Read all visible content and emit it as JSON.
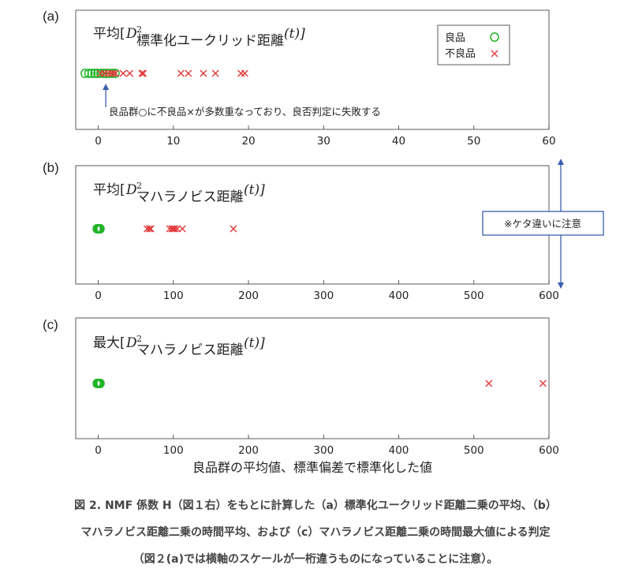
{
  "chart_data": [
    {
      "panel_label": "(a)",
      "type": "scatter",
      "title_prefix": "平均[",
      "title_math": "D",
      "title_sup": "2",
      "title_sub": "標準化ユークリッド距離",
      "title_tail": "(t)]",
      "xlim": [
        -3,
        60
      ],
      "xticks": [
        0,
        10,
        20,
        30,
        40,
        50,
        60
      ],
      "legend_position": "top-right",
      "legend": [
        {
          "label": "良品",
          "marker": "circle",
          "color": "#23b42a"
        },
        {
          "label": "不良品",
          "marker": "x",
          "color": "#e23b3b"
        }
      ],
      "series": [
        {
          "name": "良品",
          "x": [
            -1.8,
            -1.3,
            -0.9,
            -0.5,
            -0.1,
            0.3,
            0.7,
            1.1,
            1.5,
            1.9,
            2.3
          ]
        },
        {
          "name": "不良品",
          "x": [
            0.3,
            0.8,
            1.3,
            1.7,
            2.0,
            2.3,
            3.3,
            4.2,
            5.8,
            6.0,
            11.0,
            12.0,
            14.0,
            15.6,
            19.0,
            19.5
          ]
        }
      ],
      "annotation": {
        "text": "良品群○に不良品×が多数重なっており、良否判定に失敗する",
        "arrow_x": 1.0
      }
    },
    {
      "panel_label": "(b)",
      "type": "scatter",
      "title_prefix": "平均[",
      "title_math": "D",
      "title_sup": "2",
      "title_sub": "マハラノビス距離",
      "title_tail": "(t)]",
      "xlim": [
        -30,
        600
      ],
      "xticks": [
        0,
        100,
        200,
        300,
        400,
        500,
        600
      ],
      "series": [
        {
          "name": "良品",
          "x": [
            -2,
            -1,
            0,
            1,
            2,
            3
          ]
        },
        {
          "name": "不良品",
          "x": [
            65,
            68,
            70,
            95,
            98,
            100,
            102,
            105,
            112,
            180
          ]
        }
      ]
    },
    {
      "panel_label": "(c)",
      "type": "scatter",
      "title_prefix": "最大[",
      "title_math": "D",
      "title_sup": "2",
      "title_sub": "マハラノビス距離",
      "title_tail": "(t)]",
      "xlim": [
        -30,
        600
      ],
      "xticks": [
        0,
        100,
        200,
        300,
        400,
        500,
        600
      ],
      "xlabel": "良品群の平均値、標準偏差で標準化した値",
      "series": [
        {
          "name": "良品",
          "x": [
            -2,
            -1,
            0,
            1,
            2,
            3
          ]
        },
        {
          "name": "不良品",
          "x": [
            520,
            592
          ]
        }
      ]
    }
  ],
  "side_note": "※ケタ違いに注意",
  "caption": [
    "図 2. NMF 係数 H（図１右）をもとに計算した（a）標準化ユークリッド距離二乗の平均、（b）",
    "マハラノビス距離二乗の時間平均、および（c）マハラノビス距離二乗の時間最大値による判定",
    "（図２(a)では横軸のスケールが一桁違うものになっていることに注意）。"
  ],
  "colors": {
    "good": "#23b42a",
    "bad": "#e23b3b",
    "note_border": "#3a5fae",
    "arrow": "#3a5fae"
  }
}
